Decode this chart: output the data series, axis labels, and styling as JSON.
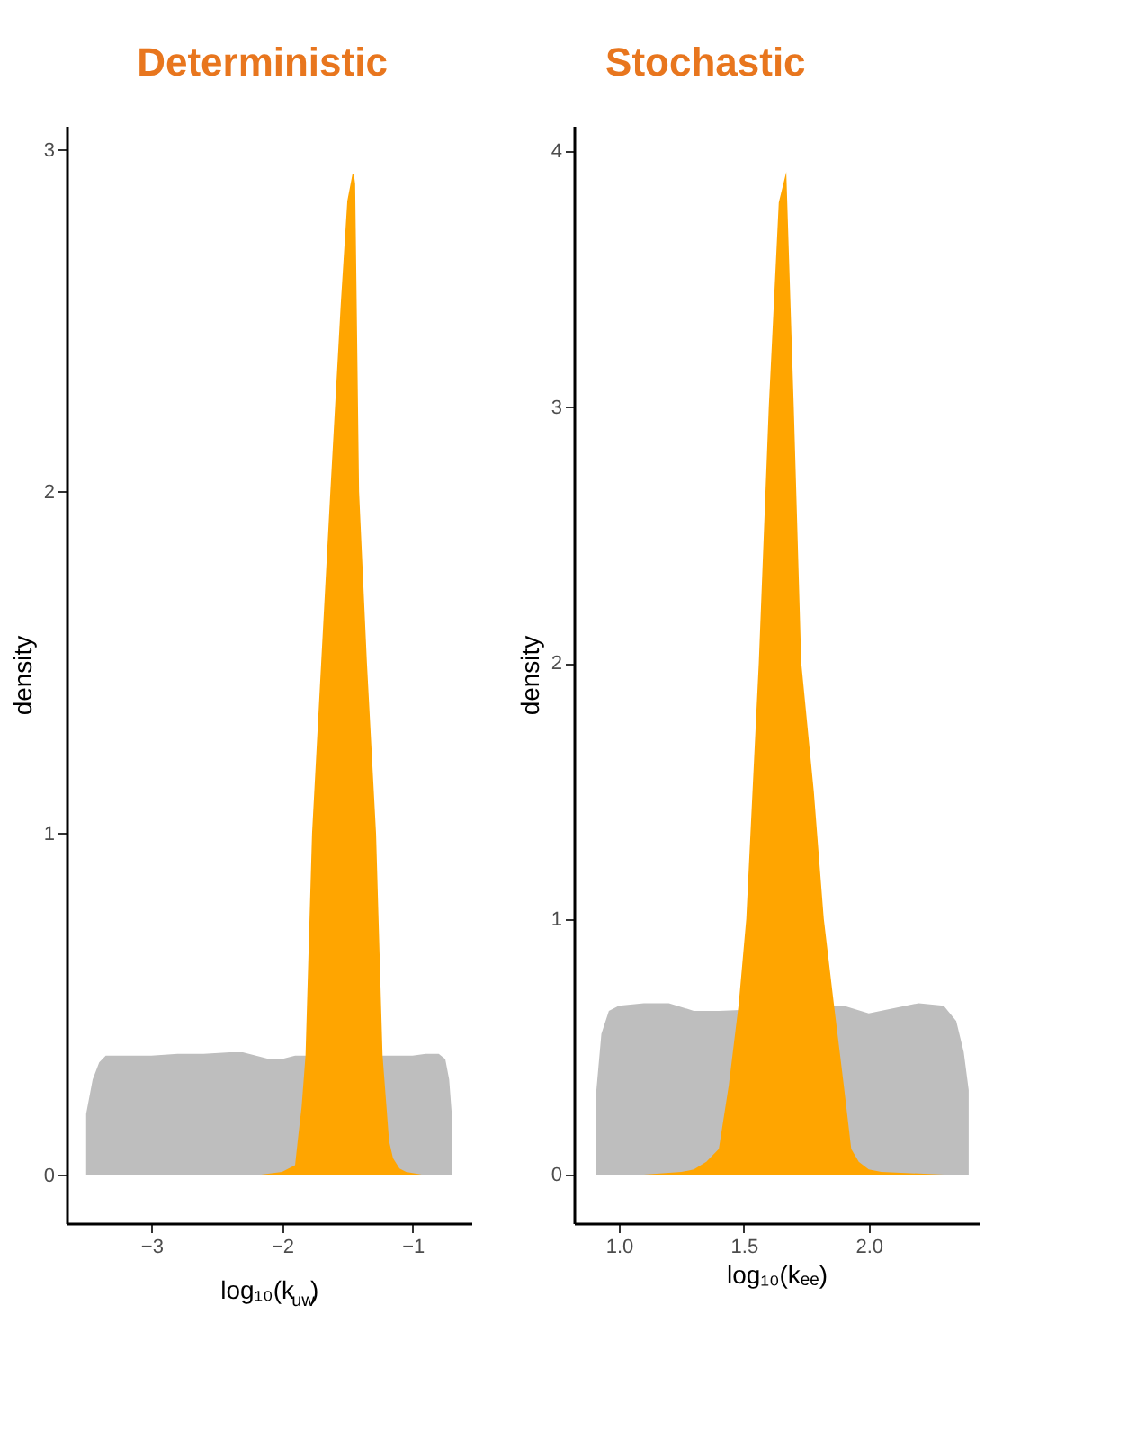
{
  "chart_data": [
    {
      "type": "other",
      "annotations": [
        "Deterministic",
        "Stochastic"
      ]
    },
    {
      "type": "area",
      "xlabel": "log₁₀(k$_{uw}$)",
      "ylabel": "density",
      "xlim": [
        -3.65,
        -0.55
      ],
      "ylim": [
        -0.14,
        3.07
      ],
      "xticks": [
        -3,
        -2,
        -1
      ],
      "yticks": [
        0,
        1,
        2,
        3
      ],
      "grid": false,
      "legend": false,
      "series": [
        {
          "color": "#bebebe",
          "x": [
            -3.5,
            -3.5,
            -3.45,
            -3.4,
            -3.35,
            -3.2,
            -3.0,
            -2.8,
            -2.6,
            -2.4,
            -2.3,
            -2.2,
            -2.1,
            -2.0,
            -1.9,
            -1.2,
            -1.0,
            -0.9,
            -0.8,
            -0.75,
            -0.72,
            -0.7,
            -0.7
          ],
          "values": [
            0,
            0.18,
            0.28,
            0.33,
            0.35,
            0.35,
            0.35,
            0.355,
            0.355,
            0.36,
            0.36,
            0.35,
            0.34,
            0.34,
            0.35,
            0.35,
            0.35,
            0.355,
            0.355,
            0.34,
            0.28,
            0.18,
            0
          ]
        },
        {
          "color": "#ffa500",
          "x": [
            -2.2,
            -2.0,
            -1.9,
            -1.88,
            -1.85,
            -1.82,
            -1.77,
            -1.7,
            -1.63,
            -1.55,
            -1.5,
            -1.46,
            -1.45,
            -1.44,
            -1.41,
            -1.35,
            -1.28,
            -1.23,
            -1.18,
            -1.15,
            -1.1,
            -1.05,
            -0.9
          ],
          "values": [
            0,
            0.01,
            0.03,
            0.1,
            0.2,
            0.35,
            1.0,
            1.5,
            2.0,
            2.55,
            2.85,
            2.93,
            2.93,
            2.9,
            2.0,
            1.5,
            1.0,
            0.35,
            0.1,
            0.05,
            0.02,
            0.01,
            0
          ]
        }
      ]
    },
    {
      "type": "area",
      "xlabel": "log₁₀(kₑₑ)",
      "ylabel": "density",
      "xlim": [
        0.82,
        2.44
      ],
      "ylim": [
        -0.19,
        4.1
      ],
      "xticks": [
        {
          "value": 1,
          "label": "1.0"
        },
        1.5,
        {
          "value": 2,
          "label": "2.0"
        }
      ],
      "yticks": [
        0,
        1,
        2,
        3,
        4
      ],
      "grid": false,
      "legend": false,
      "series": [
        {
          "color": "#bebebe",
          "x": [
            0.91,
            0.91,
            0.93,
            0.96,
            1.0,
            1.1,
            1.2,
            1.3,
            1.4,
            1.9,
            2.0,
            2.1,
            2.2,
            2.3,
            2.35,
            2.38,
            2.4,
            2.4
          ],
          "values": [
            0,
            0.33,
            0.55,
            0.64,
            0.66,
            0.67,
            0.67,
            0.64,
            0.64,
            0.66,
            0.63,
            0.65,
            0.67,
            0.66,
            0.6,
            0.48,
            0.33,
            0
          ]
        },
        {
          "color": "#ffa500",
          "x": [
            1.1,
            1.25,
            1.3,
            1.35,
            1.4,
            1.44,
            1.48,
            1.51,
            1.56,
            1.6,
            1.64,
            1.67,
            1.7,
            1.73,
            1.78,
            1.82,
            1.86,
            1.9,
            1.93,
            1.96,
            2.0,
            2.05,
            2.3
          ],
          "values": [
            0,
            0.01,
            0.02,
            0.05,
            0.1,
            0.35,
            0.67,
            1.0,
            2.0,
            3.0,
            3.8,
            3.92,
            3.0,
            2.0,
            1.5,
            1.0,
            0.67,
            0.35,
            0.1,
            0.05,
            0.02,
            0.01,
            0
          ]
        }
      ]
    }
  ]
}
